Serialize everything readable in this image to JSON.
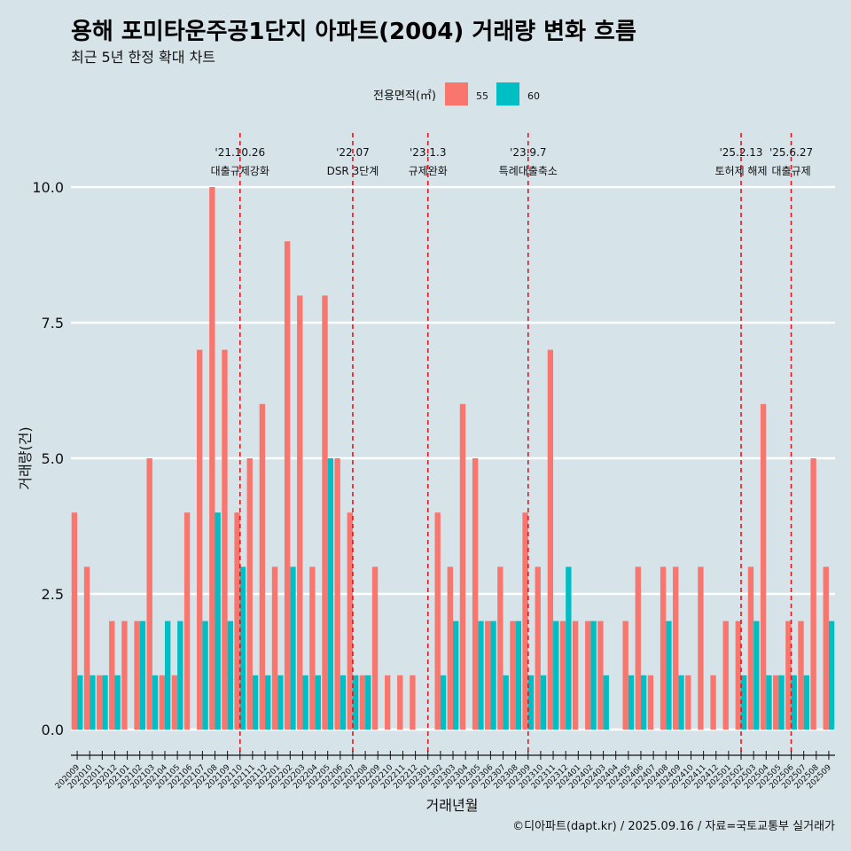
{
  "chart_data": {
    "type": "bar",
    "title": "용해 포미타운주공1단지 아파트(2004) 거래량 변화 흐름",
    "subtitle": "최근 5년 한정 확대 차트",
    "xlabel": "거래년월",
    "ylabel": "거래량(건)",
    "ylim": [
      0,
      10
    ],
    "yticks": [
      "0.0",
      "2.5",
      "5.0",
      "7.5",
      "10.0"
    ],
    "grid": true,
    "legend": {
      "title": "전용면적(㎡)",
      "placement": "top"
    },
    "categories": [
      "202009",
      "202010",
      "202011",
      "202012",
      "202101",
      "202102",
      "202103",
      "202104",
      "202105",
      "202106",
      "202107",
      "202108",
      "202109",
      "202110",
      "202111",
      "202112",
      "202201",
      "202202",
      "202203",
      "202204",
      "202205",
      "202206",
      "202207",
      "202208",
      "202209",
      "202210",
      "202211",
      "202212",
      "202301",
      "202302",
      "202303",
      "202304",
      "202305",
      "202306",
      "202307",
      "202308",
      "202309",
      "202310",
      "202311",
      "202312",
      "202401",
      "202402",
      "202403",
      "202404",
      "202405",
      "202406",
      "202407",
      "202408",
      "202409",
      "202410",
      "202411",
      "202412",
      "202501",
      "202502",
      "202503",
      "202504",
      "202505",
      "202506",
      "202507",
      "202508",
      "202509"
    ],
    "series": [
      {
        "name": "55",
        "color": "#f8766d",
        "values": [
          4,
          3,
          1,
          2,
          2,
          2,
          5,
          1,
          1,
          4,
          7,
          10,
          7,
          4,
          5,
          6,
          3,
          9,
          8,
          3,
          8,
          5,
          4,
          1,
          3,
          1,
          1,
          1,
          0,
          4,
          3,
          6,
          5,
          2,
          3,
          2,
          4,
          3,
          7,
          2,
          2,
          2,
          2,
          0,
          2,
          3,
          1,
          3,
          3,
          1,
          3,
          1,
          2,
          2,
          3,
          6,
          1,
          2,
          2,
          5,
          3
        ]
      },
      {
        "name": "60",
        "color": "#00bfc4",
        "values": [
          1,
          1,
          1,
          1,
          0,
          2,
          1,
          2,
          2,
          0,
          2,
          4,
          2,
          3,
          1,
          1,
          1,
          3,
          1,
          1,
          5,
          1,
          1,
          1,
          0,
          0,
          0,
          0,
          0,
          1,
          2,
          0,
          2,
          2,
          1,
          2,
          1,
          1,
          2,
          3,
          0,
          2,
          1,
          0,
          1,
          1,
          0,
          2,
          1,
          0,
          0,
          0,
          0,
          1,
          2,
          1,
          1,
          1,
          1,
          0,
          2
        ]
      }
    ],
    "annotations": [
      {
        "category": "202110",
        "date": "'21.10.26",
        "label": "대출규제강화"
      },
      {
        "category": "202207",
        "date": "'22.07",
        "label": "DSR 3단계"
      },
      {
        "category": "202301",
        "date": "'23.1.3",
        "label": "규제완화"
      },
      {
        "category": "202309",
        "date": "'23.9.7",
        "label": "특례대출축소"
      },
      {
        "category": "202502",
        "date": "'25.2.13",
        "label": "토허제 해제"
      },
      {
        "category": "202506",
        "date": "'25.6.27",
        "label": "대출규제"
      }
    ],
    "caption": "©디아파트(dapt.kr) / 2025.09.16 / 자료=국토교통부 실거래가"
  }
}
